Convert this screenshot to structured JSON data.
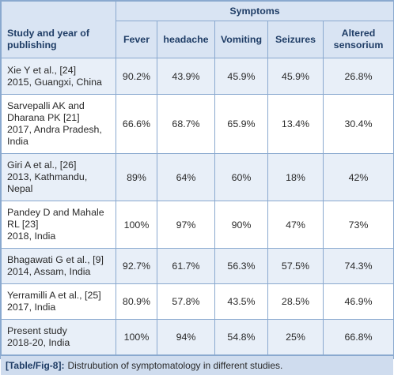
{
  "table": {
    "study_header": "Study and year of publishing",
    "group_header": "Symptoms",
    "columns": [
      "Fever",
      "headache",
      "Vomiting",
      "Seizures",
      "Altered sensorium"
    ],
    "rows": [
      {
        "study": [
          "Xie Y et al., [24]",
          "2015, Guangxi, China"
        ],
        "values": [
          "90.2%",
          "43.9%",
          "45.9%",
          "45.9%",
          "26.8%"
        ]
      },
      {
        "study": [
          "Sarvepalli AK and",
          "Dharana PK [21]",
          "2017, Andra Pradesh,",
          "India"
        ],
        "values": [
          "66.6%",
          "68.7%",
          "65.9%",
          "13.4%",
          "30.4%"
        ]
      },
      {
        "study": [
          "Giri A et al., [26]",
          "2013, Kathmandu,",
          "Nepal"
        ],
        "values": [
          "89%",
          "64%",
          "60%",
          "18%",
          "42%"
        ]
      },
      {
        "study": [
          "Pandey D and Mahale",
          "RL [23]",
          "2018, India"
        ],
        "values": [
          "100%",
          "97%",
          "90%",
          "47%",
          "73%"
        ]
      },
      {
        "study": [
          "Bhagawati G et al., [9]",
          "2014, Assam, India"
        ],
        "values": [
          "92.7%",
          "61.7%",
          "56.3%",
          "57.5%",
          "74.3%"
        ]
      },
      {
        "study": [
          "Yerramilli A et al., [25]",
          "2017, India"
        ],
        "values": [
          "80.9%",
          "57.8%",
          "43.5%",
          "28.5%",
          "46.9%"
        ]
      },
      {
        "study": [
          "Present study",
          "2018-20, India"
        ],
        "values": [
          "100%",
          "94%",
          "54.8%",
          "25%",
          "66.8%"
        ]
      }
    ]
  },
  "caption": {
    "tag": "[Table/Fig-8]:",
    "text": "Distrubution of symptomatology in different studies."
  }
}
